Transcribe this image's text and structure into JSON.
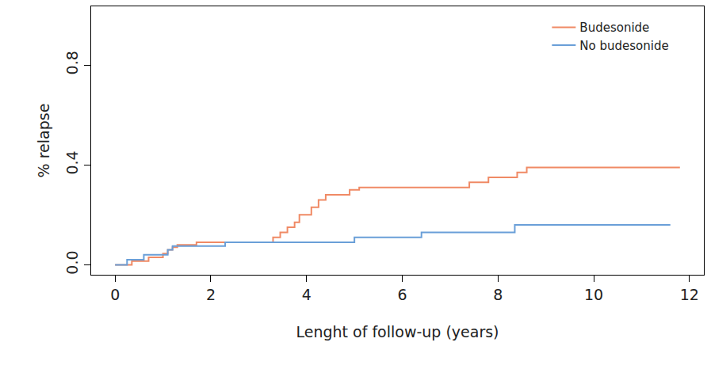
{
  "chart_data": {
    "type": "line",
    "line_style": "step",
    "xlabel": "Lenght of follow-up (years)",
    "ylabel": "% relapse",
    "xlim": [
      -0.5,
      12.3
    ],
    "ylim": [
      -0.04,
      1.035
    ],
    "xticks": [
      0,
      2,
      4,
      6,
      8,
      10,
      12
    ],
    "yticks": [
      {
        "value": 0,
        "label": "0.0"
      },
      0.4,
      0.8
    ],
    "grid": false,
    "legend": "top-right",
    "series": [
      {
        "name": "Budesonide",
        "color": "#f08a65",
        "x": [
          0,
          0.35,
          0.7,
          1.0,
          1.1,
          1.2,
          1.3,
          1.7,
          3.3,
          3.45,
          3.6,
          3.75,
          3.85,
          4.1,
          4.25,
          4.4,
          4.9,
          5.1,
          7.4,
          7.8,
          8.4,
          8.6,
          11.8
        ],
        "values": [
          0,
          0.015,
          0.03,
          0.045,
          0.06,
          0.07,
          0.08,
          0.09,
          0.11,
          0.13,
          0.15,
          0.17,
          0.2,
          0.23,
          0.26,
          0.28,
          0.3,
          0.31,
          0.33,
          0.35,
          0.37,
          0.39,
          0.39
        ]
      },
      {
        "name": "No budesonide",
        "color": "#6a9fd8",
        "x": [
          0,
          0.25,
          0.6,
          1.1,
          1.2,
          2.3,
          5.0,
          6.4,
          8.35,
          11.6
        ],
        "values": [
          0,
          0.02,
          0.04,
          0.06,
          0.075,
          0.09,
          0.11,
          0.13,
          0.16,
          0.16
        ]
      }
    ]
  }
}
